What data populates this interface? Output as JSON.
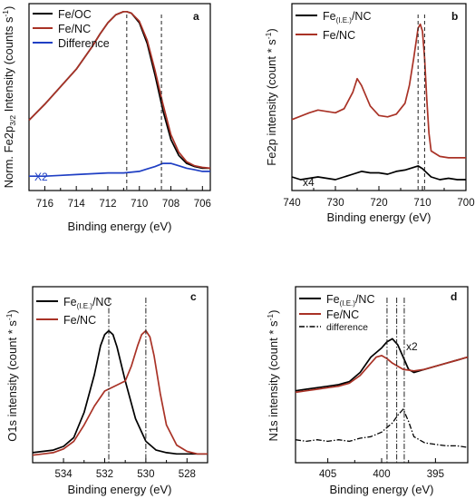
{
  "chart_data": [
    {
      "id": "a",
      "type": "line",
      "panel_label": "a",
      "xlabel": "Binding energy (eV)",
      "ylabel": "Norm. Fe2p3/2 Intensity (counts s-1)",
      "xlim": [
        717,
        705.5
      ],
      "x_ticks": [
        716,
        714,
        712,
        710,
        708,
        706
      ],
      "y_ticks_labeled": false,
      "annotations": {
        "scale": "X2"
      },
      "markers_x": [
        710.8,
        708.6
      ],
      "series": [
        {
          "name": "Fe/OC",
          "color": "#000000",
          "x": [
            717,
            716,
            715,
            714,
            713.5,
            713,
            712.5,
            712,
            711.5,
            711,
            710.8,
            710.5,
            710,
            709.5,
            709,
            708.5,
            708,
            707.5,
            707,
            706.5,
            706,
            705.5
          ],
          "y": [
            0.32,
            0.42,
            0.53,
            0.64,
            0.71,
            0.78,
            0.86,
            0.93,
            0.98,
            1.0,
            1.0,
            0.99,
            0.93,
            0.8,
            0.6,
            0.38,
            0.2,
            0.1,
            0.05,
            0.03,
            0.02,
            0.02
          ]
        },
        {
          "name": "Fe/NC",
          "color": "#a93226",
          "x": [
            717,
            716,
            715,
            714,
            713.5,
            713,
            712.5,
            712,
            711.5,
            711,
            710.8,
            710.5,
            710,
            709.5,
            709,
            708.5,
            708,
            707.5,
            707,
            706.5,
            706,
            705.5
          ],
          "y": [
            0.32,
            0.42,
            0.53,
            0.64,
            0.71,
            0.78,
            0.86,
            0.93,
            0.98,
            1.0,
            1.0,
            0.99,
            0.94,
            0.82,
            0.63,
            0.42,
            0.23,
            0.12,
            0.06,
            0.035,
            0.025,
            0.02
          ]
        },
        {
          "name": "Difference",
          "color": "#1f3fc4",
          "x": [
            717,
            716,
            715,
            714,
            713,
            712,
            711,
            710,
            709.5,
            709,
            708.5,
            708,
            707.5,
            707,
            706.5,
            706,
            705.5
          ],
          "y": [
            -0.03,
            -0.03,
            -0.025,
            -0.02,
            -0.015,
            -0.01,
            -0.01,
            0.0,
            0.015,
            0.03,
            0.05,
            0.05,
            0.035,
            0.02,
            0.01,
            0.0,
            0.0
          ]
        }
      ],
      "legend": [
        "Fe/OC",
        "Fe/NC",
        "Difference"
      ],
      "ylim": [
        -0.12,
        1.05
      ],
      "grid": false,
      "legend_placement": "top-left"
    },
    {
      "id": "b",
      "type": "line",
      "panel_label": "b",
      "xlabel": "Binding energy (eV)",
      "ylabel": "Fe2p intensity (count * s-1)",
      "xlim": [
        740,
        700
      ],
      "x_ticks": [
        740,
        730,
        720,
        710,
        700
      ],
      "y_ticks_labeled": false,
      "annotations": {
        "scale": "x4"
      },
      "markers_x": [
        711,
        709.5
      ],
      "series": [
        {
          "name": "Fe(I.E.)/NC",
          "color": "#000000",
          "x": [
            740,
            738,
            736,
            734,
            732,
            730,
            728,
            726,
            724,
            722,
            720,
            718,
            716,
            714,
            712,
            711,
            710,
            709,
            708,
            706,
            704,
            702,
            700
          ],
          "y": [
            -0.12,
            -0.14,
            -0.13,
            -0.12,
            -0.13,
            -0.14,
            -0.12,
            -0.1,
            -0.08,
            -0.09,
            -0.09,
            -0.1,
            -0.08,
            -0.07,
            -0.05,
            -0.04,
            -0.06,
            -0.09,
            -0.12,
            -0.14,
            -0.13,
            -0.14,
            -0.14
          ]
        },
        {
          "name": "Fe/NC",
          "color": "#a93226",
          "x": [
            740,
            736,
            734,
            732,
            730,
            728,
            726,
            725,
            724,
            722,
            720,
            718,
            716,
            714,
            713,
            712,
            711,
            710.5,
            710,
            709.5,
            709,
            708.5,
            708,
            706,
            704,
            702,
            700
          ],
          "y": [
            0.3,
            0.35,
            0.37,
            0.36,
            0.35,
            0.38,
            0.5,
            0.6,
            0.55,
            0.4,
            0.33,
            0.32,
            0.34,
            0.42,
            0.55,
            0.75,
            0.97,
            1.0,
            0.95,
            0.75,
            0.45,
            0.2,
            0.07,
            0.03,
            0.02,
            0.02,
            0.02
          ]
        }
      ],
      "legend": [
        "Fe(I.E.)/NC",
        "Fe/NC"
      ],
      "ylim": [
        -0.22,
        1.15
      ],
      "grid": false,
      "legend_placement": "top-left"
    },
    {
      "id": "c",
      "type": "line",
      "panel_label": "c",
      "xlabel": "Binding energy (eV)",
      "ylabel": "O1s intensity (count * s-1)",
      "xlim": [
        535.5,
        527
      ],
      "x_ticks": [
        534,
        532,
        530,
        528
      ],
      "y_ticks_labeled": false,
      "markers_x": [
        531.8,
        530.0
      ],
      "series": [
        {
          "name": "Fe(I.E.)/NC",
          "color": "#000000",
          "x": [
            535.5,
            535,
            534.5,
            534,
            533.5,
            533,
            532.5,
            532.2,
            532,
            531.8,
            531.6,
            531.4,
            531,
            530.5,
            530,
            529.5,
            529,
            528.5,
            528,
            527.5,
            527
          ],
          "y": [
            0.03,
            0.04,
            0.05,
            0.08,
            0.15,
            0.35,
            0.65,
            0.88,
            0.97,
            1.0,
            0.97,
            0.87,
            0.6,
            0.3,
            0.12,
            0.05,
            0.03,
            0.02,
            0.02,
            0.02,
            0.02
          ]
        },
        {
          "name": "Fe/NC",
          "color": "#a93226",
          "x": [
            535.5,
            535,
            534.5,
            534,
            533.5,
            533,
            532.5,
            532,
            531.5,
            531,
            530.7,
            530.4,
            530.2,
            530,
            529.8,
            529.6,
            529.3,
            529,
            528.5,
            528,
            527.5,
            527
          ],
          "y": [
            0.01,
            0.02,
            0.03,
            0.06,
            0.12,
            0.25,
            0.4,
            0.52,
            0.56,
            0.6,
            0.72,
            0.88,
            0.97,
            1.0,
            0.95,
            0.8,
            0.5,
            0.25,
            0.09,
            0.04,
            0.02,
            0.02
          ]
        }
      ],
      "legend": [
        "Fe(I.E.)/NC",
        "Fe/NC"
      ],
      "ylim": [
        -0.05,
        1.35
      ],
      "grid": false,
      "legend_placement": "top-left"
    },
    {
      "id": "d",
      "type": "line",
      "panel_label": "d",
      "xlabel": "Binding energy (eV)",
      "ylabel": "N1s intensity (count * s-1)",
      "xlim": [
        408,
        392
      ],
      "x_ticks": [
        405,
        400,
        395
      ],
      "y_ticks_labeled": false,
      "annotations": {
        "scale": "x2"
      },
      "markers_x": [
        399.5,
        398.6,
        397.9
      ],
      "series": [
        {
          "name": "Fe(I.E.)/NC",
          "color": "#000000",
          "x": [
            408,
            407,
            406,
            405,
            404,
            403,
            402,
            401,
            400,
            399.5,
            399,
            398.5,
            398,
            397.5,
            397,
            396,
            395,
            394,
            393,
            392
          ],
          "y": [
            0.52,
            0.53,
            0.54,
            0.55,
            0.56,
            0.58,
            0.64,
            0.74,
            0.8,
            0.84,
            0.86,
            0.82,
            0.74,
            0.66,
            0.64,
            0.66,
            0.68,
            0.7,
            0.72,
            0.74
          ]
        },
        {
          "name": "Fe/NC",
          "color": "#a93226",
          "x": [
            408,
            407,
            406,
            405,
            404,
            403,
            402,
            401,
            400.5,
            400,
            399.5,
            399,
            398,
            397,
            396,
            395,
            394,
            393,
            392
          ],
          "y": [
            0.51,
            0.52,
            0.53,
            0.54,
            0.55,
            0.57,
            0.62,
            0.7,
            0.74,
            0.75,
            0.73,
            0.7,
            0.66,
            0.65,
            0.66,
            0.68,
            0.7,
            0.72,
            0.74
          ]
        },
        {
          "name": "difference",
          "color": "#000000",
          "style": "dashdot",
          "x": [
            408,
            407,
            406,
            405,
            404,
            403,
            402,
            401,
            400,
            399.5,
            399,
            398.5,
            398,
            397.5,
            397,
            396,
            395,
            394,
            393,
            392
          ],
          "y": [
            0.2,
            0.19,
            0.2,
            0.19,
            0.2,
            0.19,
            0.21,
            0.22,
            0.25,
            0.28,
            0.31,
            0.36,
            0.4,
            0.32,
            0.22,
            0.18,
            0.17,
            0.16,
            0.16,
            0.15
          ]
        }
      ],
      "legend": [
        "Fe(I.E.)/NC",
        "Fe/NC",
        "difference"
      ],
      "ylim": [
        0.05,
        1.2
      ],
      "grid": false,
      "legend_placement": "top-left"
    }
  ]
}
